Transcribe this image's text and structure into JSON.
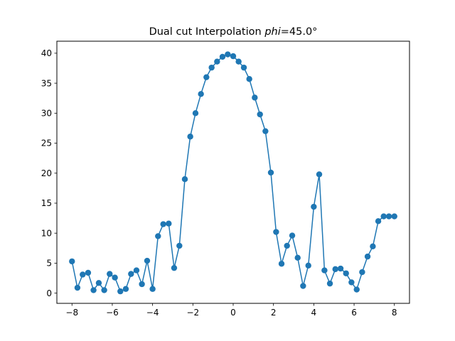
{
  "chart_data": {
    "type": "line",
    "title": "Dual cut Interpolation ",
    "title_math": "phi",
    "title_suffix": "=45.0°",
    "xlabel": "",
    "ylabel": "",
    "xlim": [
      -8.75,
      8.75
    ],
    "ylim": [
      -1.7,
      42.0
    ],
    "x_ticks": [
      -8,
      -6,
      -4,
      -2,
      0,
      2,
      4,
      6,
      8
    ],
    "x_tick_labels": [
      "−8",
      "−6",
      "−4",
      "−2",
      "0",
      "2",
      "4",
      "6",
      "8"
    ],
    "y_ticks": [
      0,
      5,
      10,
      15,
      20,
      25,
      30,
      35,
      40
    ],
    "y_tick_labels": [
      "0",
      "5",
      "10",
      "15",
      "20",
      "25",
      "30",
      "35",
      "40"
    ],
    "grid": false,
    "marker": "circle",
    "color": "#1f77b4",
    "series": [
      {
        "x": [
          -8.0,
          -7.73,
          -7.47,
          -7.2,
          -6.93,
          -6.67,
          -6.4,
          -6.13,
          -5.87,
          -5.6,
          -5.33,
          -5.07,
          -4.8,
          -4.53,
          -4.27,
          -4.0,
          -3.73,
          -3.47,
          -3.2,
          -2.93,
          -2.67,
          -2.4,
          -2.13,
          -1.87,
          -1.6,
          -1.33,
          -1.07,
          -0.8,
          -0.53,
          -0.27,
          0.0,
          0.27,
          0.53,
          0.8,
          1.07,
          1.33,
          1.6,
          1.87,
          2.13,
          2.4,
          2.67,
          2.93,
          3.2,
          3.47,
          3.73,
          4.0,
          4.27,
          4.53,
          4.8,
          5.07,
          5.33,
          5.6,
          5.87,
          6.13,
          6.4,
          6.67,
          6.93,
          7.2,
          7.47,
          7.73,
          8.0
        ],
        "y": [
          5.3,
          0.9,
          3.1,
          3.4,
          0.5,
          1.7,
          0.5,
          3.2,
          2.6,
          0.3,
          0.7,
          3.2,
          3.8,
          1.5,
          5.4,
          0.7,
          9.5,
          11.5,
          11.6,
          4.2,
          7.9,
          19.0,
          26.1,
          30.0,
          33.2,
          36.0,
          37.6,
          38.6,
          39.4,
          39.8,
          39.5,
          38.6,
          37.6,
          35.7,
          32.6,
          29.8,
          27.0,
          20.1,
          10.2,
          4.9,
          7.9,
          9.6,
          5.9,
          1.2,
          4.6,
          14.4,
          19.8,
          3.8,
          1.6,
          4.0,
          4.1,
          3.3,
          1.8,
          0.6,
          3.5,
          6.1,
          7.8,
          12.0,
          12.8,
          12.8,
          12.8
        ]
      }
    ]
  }
}
